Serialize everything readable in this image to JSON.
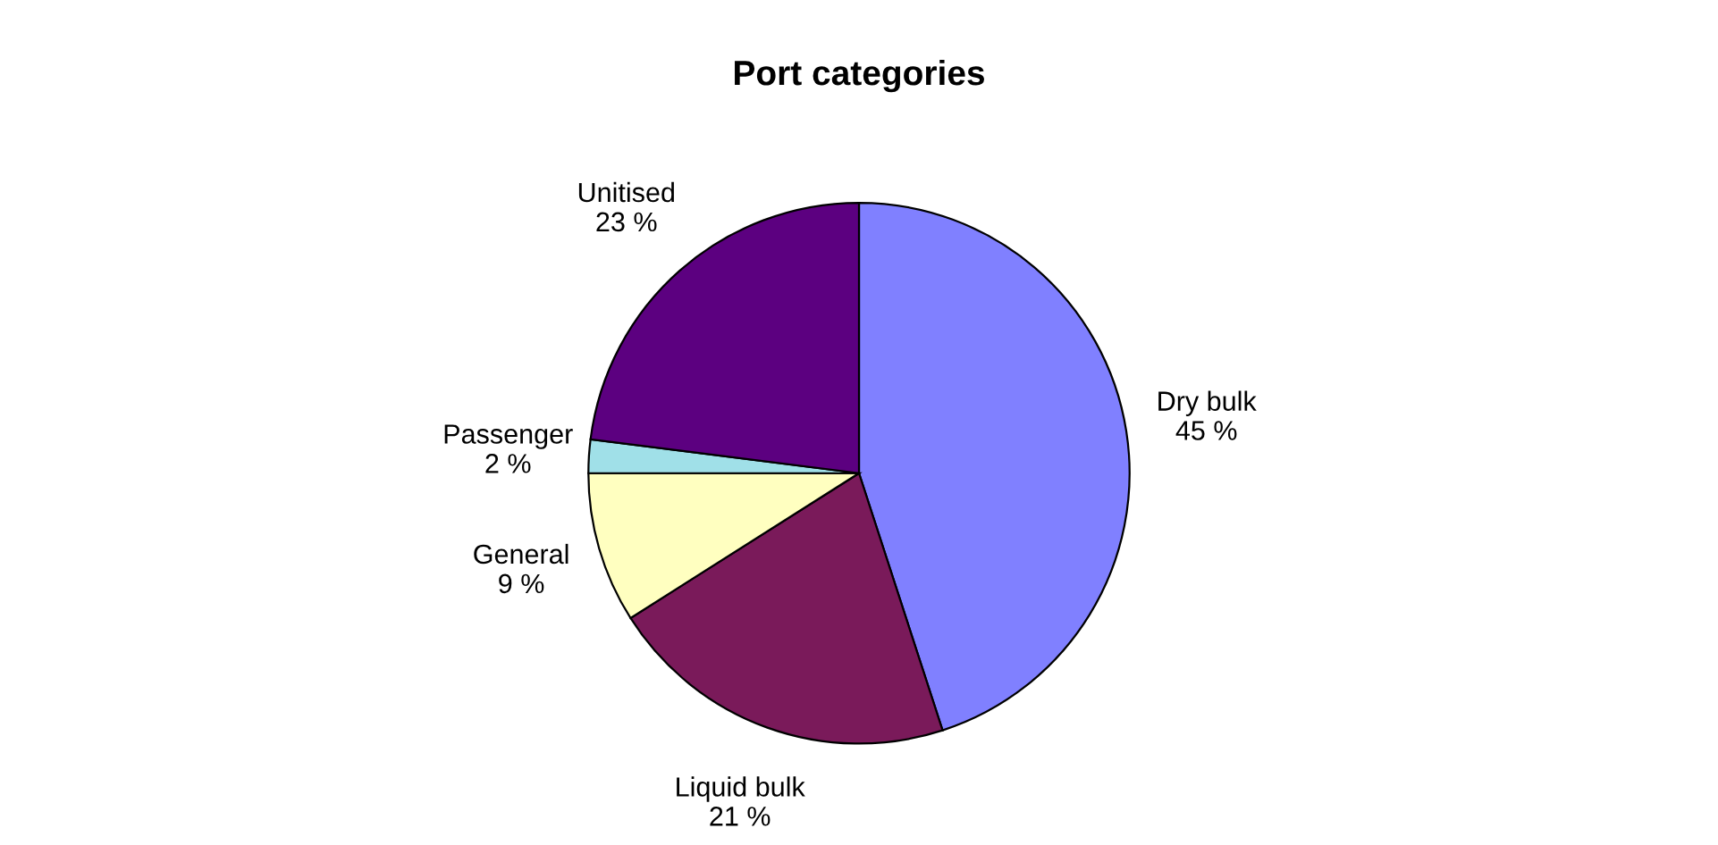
{
  "chart_data": {
    "type": "pie",
    "title": "Port categories",
    "categories": [
      "Dry bulk",
      "Liquid bulk",
      "General",
      "Passenger",
      "Unitised"
    ],
    "values": [
      45,
      21,
      9,
      2,
      23
    ],
    "value_labels": [
      "45 %",
      "21 %",
      "9 %",
      "2 %",
      "23 %"
    ],
    "colors": [
      "#8080ff",
      "#7a1a5a",
      "#ffffc0",
      "#a0e0e8",
      "#5c0080"
    ],
    "legend": false
  }
}
